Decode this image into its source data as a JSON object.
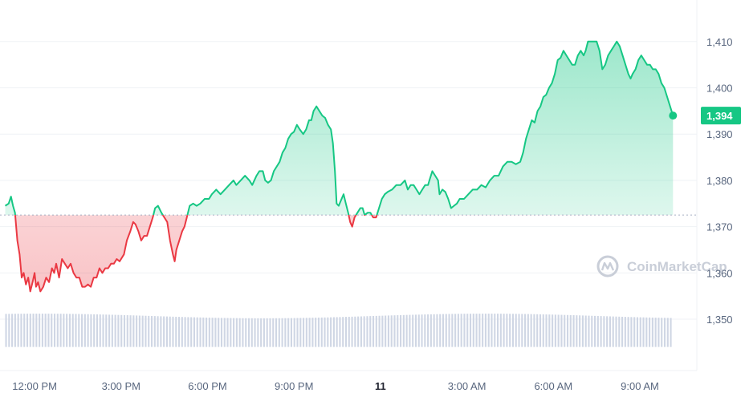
{
  "watermark": {
    "text": "CoinMarketCap",
    "icon": "coinmarketcap-logo-icon"
  },
  "colors": {
    "up": "#16c784",
    "down": "#ea3943",
    "grid": "#eff2f5",
    "volume": "#cfd6e4",
    "baseline": "#a6b0c3"
  },
  "chart_data": {
    "type": "area",
    "baseline_value": 1372.5,
    "last_value": "1,394",
    "ylim": [
      1340,
      1420
    ],
    "y_ticks": [
      {
        "value": 1350,
        "label": "1,350"
      },
      {
        "value": 1360,
        "label": "1,360"
      },
      {
        "value": 1370,
        "label": "1,370"
      },
      {
        "value": 1380,
        "label": "1,380"
      },
      {
        "value": 1390,
        "label": "1,390"
      },
      {
        "value": 1400,
        "label": "1,400"
      },
      {
        "value": 1410,
        "label": "1,410"
      }
    ],
    "x_ticks": [
      {
        "hour": 12,
        "label": "12:00 PM",
        "bold": false
      },
      {
        "hour": 15,
        "label": "3:00 PM",
        "bold": false
      },
      {
        "hour": 18,
        "label": "6:00 PM",
        "bold": false
      },
      {
        "hour": 21,
        "label": "9:00 PM",
        "bold": false
      },
      {
        "hour": 24,
        "label": "11",
        "bold": true
      },
      {
        "hour": 27,
        "label": "3:00 AM",
        "bold": false
      },
      {
        "hour": 30,
        "label": "6:00 AM",
        "bold": false
      },
      {
        "hour": 33,
        "label": "9:00 AM",
        "bold": false
      }
    ],
    "xlim": [
      10.98,
      34.7
    ],
    "series": [
      {
        "values": [
          [
            10.98,
            1374.5
          ],
          [
            11.1,
            1375
          ],
          [
            11.18,
            1376.5
          ],
          [
            11.25,
            1374.5
          ],
          [
            11.32,
            1373
          ],
          [
            11.4,
            1367
          ],
          [
            11.48,
            1364
          ],
          [
            11.55,
            1359
          ],
          [
            11.62,
            1360
          ],
          [
            11.7,
            1357.5
          ],
          [
            11.78,
            1359
          ],
          [
            11.85,
            1356
          ],
          [
            11.93,
            1358
          ],
          [
            12.0,
            1360
          ],
          [
            12.05,
            1357
          ],
          [
            12.12,
            1358
          ],
          [
            12.2,
            1356
          ],
          [
            12.3,
            1357
          ],
          [
            12.4,
            1359
          ],
          [
            12.5,
            1358
          ],
          [
            12.6,
            1361
          ],
          [
            12.68,
            1360
          ],
          [
            12.75,
            1362
          ],
          [
            12.85,
            1359
          ],
          [
            12.95,
            1363
          ],
          [
            13.05,
            1362
          ],
          [
            13.15,
            1361
          ],
          [
            13.25,
            1362
          ],
          [
            13.35,
            1360
          ],
          [
            13.45,
            1359
          ],
          [
            13.55,
            1359
          ],
          [
            13.65,
            1357
          ],
          [
            13.75,
            1357
          ],
          [
            13.85,
            1357.5
          ],
          [
            13.95,
            1357
          ],
          [
            14.05,
            1359
          ],
          [
            14.15,
            1359
          ],
          [
            14.25,
            1361
          ],
          [
            14.35,
            1360
          ],
          [
            14.45,
            1361
          ],
          [
            14.55,
            1361
          ],
          [
            14.65,
            1362
          ],
          [
            14.75,
            1362
          ],
          [
            14.85,
            1363
          ],
          [
            14.95,
            1362.5
          ],
          [
            15.1,
            1364
          ],
          [
            15.2,
            1367
          ],
          [
            15.32,
            1369
          ],
          [
            15.42,
            1371
          ],
          [
            15.5,
            1370.5
          ],
          [
            15.6,
            1369
          ],
          [
            15.7,
            1367
          ],
          [
            15.8,
            1368
          ],
          [
            15.9,
            1368
          ],
          [
            16.0,
            1370
          ],
          [
            16.1,
            1372
          ],
          [
            16.18,
            1374
          ],
          [
            16.28,
            1374.5
          ],
          [
            16.4,
            1373
          ],
          [
            16.5,
            1372
          ],
          [
            16.6,
            1371
          ],
          [
            16.7,
            1367
          ],
          [
            16.8,
            1364
          ],
          [
            16.86,
            1362.5
          ],
          [
            16.92,
            1365
          ],
          [
            17.02,
            1367
          ],
          [
            17.12,
            1369
          ],
          [
            17.2,
            1370
          ],
          [
            17.28,
            1372
          ],
          [
            17.38,
            1374.5
          ],
          [
            17.5,
            1375
          ],
          [
            17.62,
            1374.5
          ],
          [
            17.75,
            1375
          ],
          [
            17.9,
            1376
          ],
          [
            18.05,
            1376
          ],
          [
            18.15,
            1377
          ],
          [
            18.3,
            1378
          ],
          [
            18.45,
            1377
          ],
          [
            18.6,
            1378
          ],
          [
            18.75,
            1379
          ],
          [
            18.9,
            1380
          ],
          [
            19.0,
            1379
          ],
          [
            19.15,
            1380
          ],
          [
            19.3,
            1381
          ],
          [
            19.45,
            1380
          ],
          [
            19.55,
            1379
          ],
          [
            19.7,
            1381
          ],
          [
            19.8,
            1382
          ],
          [
            19.92,
            1382
          ],
          [
            20.0,
            1380
          ],
          [
            20.1,
            1379.5
          ],
          [
            20.2,
            1380
          ],
          [
            20.3,
            1382
          ],
          [
            20.4,
            1383
          ],
          [
            20.5,
            1384
          ],
          [
            20.6,
            1386
          ],
          [
            20.7,
            1387
          ],
          [
            20.8,
            1389
          ],
          [
            20.9,
            1390
          ],
          [
            21.0,
            1390.5
          ],
          [
            21.1,
            1392
          ],
          [
            21.2,
            1391
          ],
          [
            21.32,
            1390
          ],
          [
            21.42,
            1391
          ],
          [
            21.52,
            1393
          ],
          [
            21.6,
            1393
          ],
          [
            21.68,
            1395
          ],
          [
            21.78,
            1396
          ],
          [
            21.88,
            1395
          ],
          [
            21.98,
            1394
          ],
          [
            22.08,
            1393.5
          ],
          [
            22.18,
            1392
          ],
          [
            22.28,
            1391
          ],
          [
            22.35,
            1388
          ],
          [
            22.42,
            1382
          ],
          [
            22.48,
            1375
          ],
          [
            22.55,
            1374.5
          ],
          [
            22.65,
            1376
          ],
          [
            22.72,
            1377
          ],
          [
            22.8,
            1375
          ],
          [
            22.88,
            1373
          ],
          [
            22.95,
            1371
          ],
          [
            23.02,
            1370
          ],
          [
            23.1,
            1372
          ],
          [
            23.2,
            1373
          ],
          [
            23.3,
            1374
          ],
          [
            23.38,
            1374
          ],
          [
            23.45,
            1372.5
          ],
          [
            23.55,
            1373
          ],
          [
            23.65,
            1373
          ],
          [
            23.75,
            1372
          ],
          [
            23.85,
            1372
          ],
          [
            23.95,
            1374
          ],
          [
            24.05,
            1376
          ],
          [
            24.15,
            1377
          ],
          [
            24.25,
            1377.5
          ],
          [
            24.4,
            1378
          ],
          [
            24.55,
            1379
          ],
          [
            24.7,
            1379
          ],
          [
            24.85,
            1380
          ],
          [
            24.95,
            1378
          ],
          [
            25.05,
            1379
          ],
          [
            25.15,
            1379
          ],
          [
            25.25,
            1378
          ],
          [
            25.35,
            1377
          ],
          [
            25.45,
            1378
          ],
          [
            25.55,
            1379
          ],
          [
            25.65,
            1379
          ],
          [
            25.7,
            1380
          ],
          [
            25.8,
            1382
          ],
          [
            25.9,
            1381
          ],
          [
            26.0,
            1380
          ],
          [
            26.05,
            1377
          ],
          [
            26.15,
            1378
          ],
          [
            26.25,
            1377.5
          ],
          [
            26.35,
            1376
          ],
          [
            26.45,
            1374
          ],
          [
            26.55,
            1374.5
          ],
          [
            26.65,
            1375
          ],
          [
            26.75,
            1376
          ],
          [
            26.9,
            1376
          ],
          [
            27.05,
            1377
          ],
          [
            27.2,
            1378
          ],
          [
            27.35,
            1378
          ],
          [
            27.5,
            1379
          ],
          [
            27.65,
            1378.5
          ],
          [
            27.8,
            1380
          ],
          [
            27.95,
            1381
          ],
          [
            28.1,
            1381
          ],
          [
            28.25,
            1383
          ],
          [
            28.4,
            1384
          ],
          [
            28.55,
            1384
          ],
          [
            28.7,
            1383.5
          ],
          [
            28.85,
            1384
          ],
          [
            28.95,
            1386
          ],
          [
            29.05,
            1389
          ],
          [
            29.15,
            1391
          ],
          [
            29.25,
            1393
          ],
          [
            29.35,
            1392.5
          ],
          [
            29.45,
            1395
          ],
          [
            29.55,
            1396
          ],
          [
            29.65,
            1398
          ],
          [
            29.75,
            1398.5
          ],
          [
            29.85,
            1400
          ],
          [
            29.95,
            1401
          ],
          [
            30.05,
            1403
          ],
          [
            30.15,
            1406
          ],
          [
            30.25,
            1406.5
          ],
          [
            30.35,
            1408
          ],
          [
            30.45,
            1407
          ],
          [
            30.55,
            1406
          ],
          [
            30.65,
            1405
          ],
          [
            30.75,
            1405
          ],
          [
            30.85,
            1407
          ],
          [
            30.95,
            1408
          ],
          [
            31.05,
            1407
          ],
          [
            31.12,
            1408
          ],
          [
            31.2,
            1410
          ],
          [
            31.3,
            1410
          ],
          [
            31.4,
            1410
          ],
          [
            31.5,
            1410
          ],
          [
            31.6,
            1408
          ],
          [
            31.7,
            1404
          ],
          [
            31.8,
            1405
          ],
          [
            31.9,
            1407
          ],
          [
            32.0,
            1408
          ],
          [
            32.1,
            1409
          ],
          [
            32.2,
            1410
          ],
          [
            32.3,
            1409
          ],
          [
            32.4,
            1407
          ],
          [
            32.5,
            1405
          ],
          [
            32.6,
            1403
          ],
          [
            32.68,
            1402
          ],
          [
            32.75,
            1403
          ],
          [
            32.85,
            1404
          ],
          [
            32.95,
            1406
          ],
          [
            33.05,
            1407
          ],
          [
            33.15,
            1406
          ],
          [
            33.25,
            1405
          ],
          [
            33.35,
            1405
          ],
          [
            33.45,
            1404
          ],
          [
            33.55,
            1404
          ],
          [
            33.65,
            1403
          ],
          [
            33.75,
            1401
          ],
          [
            33.85,
            1400
          ],
          [
            33.95,
            1398
          ],
          [
            34.05,
            1396
          ],
          [
            34.15,
            1394
          ]
        ]
      }
    ],
    "volume": {
      "count": 220,
      "baseline_value": 1344,
      "top_range": [
        1350.2,
        1351.2
      ]
    }
  }
}
